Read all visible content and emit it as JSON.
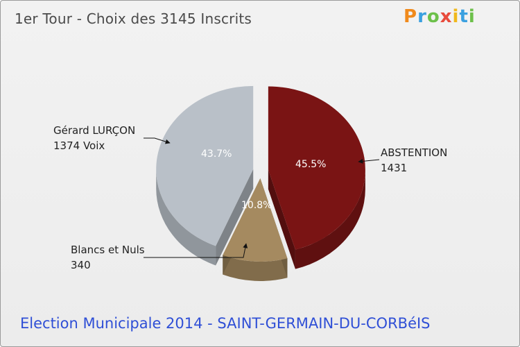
{
  "title": "1er Tour - Choix des 3145 Inscrits",
  "footer": "Election Municipale 2014 - SAINT-GERMAIN-DU-CORBéIS",
  "logo": "Proxiti",
  "labels": {
    "abstention": {
      "name": "ABSTENTION",
      "value": "1431",
      "pct": "45.5%"
    },
    "blancs": {
      "name": "Blancs et Nuls",
      "value": "340",
      "pct": "10.8%"
    },
    "gerard": {
      "name": "Gérard LURÇON",
      "value": "1374 Voix",
      "pct": "43.7%"
    }
  },
  "colors": {
    "abstention": "#7a1414",
    "blancs": "#a58a60",
    "gerard": "#b9c0c8",
    "title": "#4a4a4a",
    "footer": "#2f4fd6"
  },
  "chart_data": {
    "type": "pie",
    "title": "1er Tour - Choix des 3145 Inscrits",
    "total": 3145,
    "slices": [
      {
        "label": "ABSTENTION",
        "value": 1431,
        "percent": 45.5
      },
      {
        "label": "Blancs et Nuls",
        "value": 340,
        "percent": 10.8
      },
      {
        "label": "Gérard LURÇON",
        "value": 1374,
        "percent": 43.7
      }
    ]
  }
}
